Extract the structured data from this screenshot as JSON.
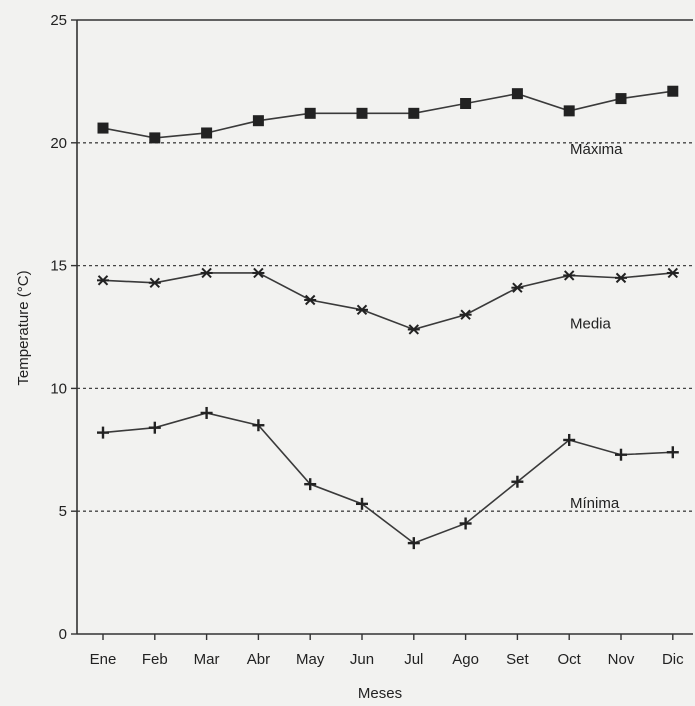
{
  "chart_data": {
    "type": "line",
    "title": "",
    "xlabel": "Meses",
    "ylabel": "Temperature (°C)",
    "categories": [
      "Ene",
      "Feb",
      "Mar",
      "Abr",
      "May",
      "Jun",
      "Jul",
      "Ago",
      "Set",
      "Oct",
      "Nov",
      "Dic"
    ],
    "ylim": [
      0,
      25
    ],
    "yticks": [
      0,
      5,
      10,
      15,
      20,
      25
    ],
    "grid": "horizontal dashed at 5, 10, 15, 20",
    "legend": "inline labels on the right",
    "series": [
      {
        "name": "Máxima",
        "marker": "square",
        "values": [
          20.6,
          20.2,
          20.4,
          20.9,
          21.2,
          21.2,
          21.2,
          21.6,
          22.0,
          21.3,
          21.8,
          22.1
        ]
      },
      {
        "name": "Media",
        "marker": "asterisk",
        "values": [
          14.4,
          14.3,
          14.7,
          14.7,
          13.6,
          13.2,
          12.4,
          13.0,
          14.1,
          14.6,
          14.5,
          14.7
        ]
      },
      {
        "name": "Mínima",
        "marker": "plus",
        "values": [
          8.2,
          8.4,
          9.0,
          8.5,
          6.1,
          5.3,
          3.7,
          4.5,
          6.2,
          7.9,
          7.3,
          7.4
        ]
      }
    ],
    "colors": {
      "background": "#f2f2f0",
      "axis": "#333333",
      "grid": "#444444",
      "line": "#3a3a3a",
      "marker": "#222222"
    }
  }
}
